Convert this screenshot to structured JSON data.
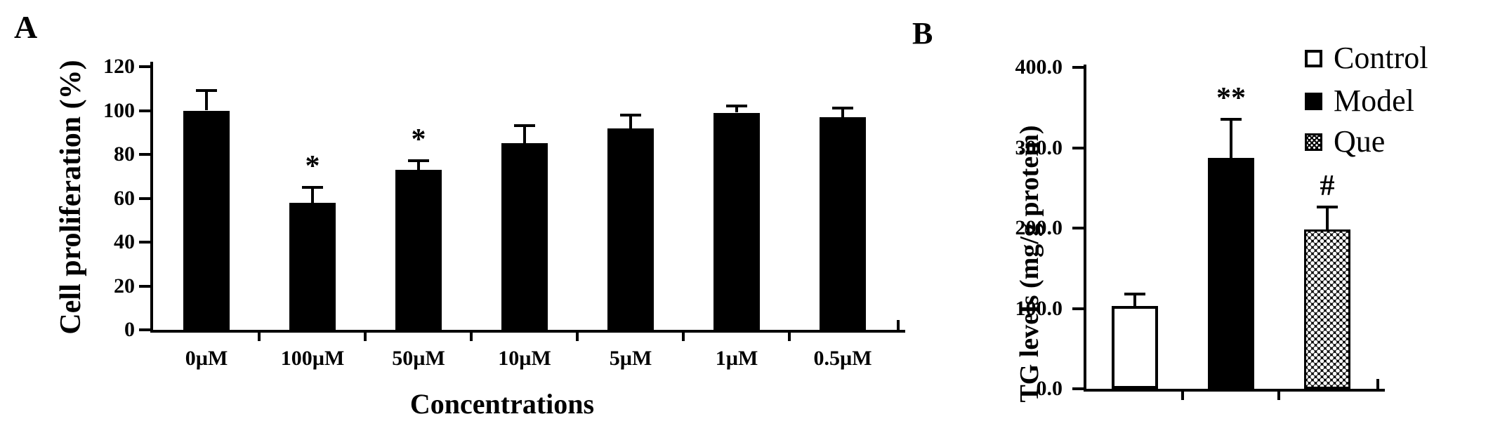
{
  "figure": {
    "background": "#ffffff",
    "ink_color": "#000000"
  },
  "chart_data": [
    {
      "id": "panel-a",
      "panel_label": "A",
      "type": "bar",
      "title": "",
      "ylabel": "Cell proliferation (%)",
      "xlabel": "Concentrations",
      "categories": [
        "0µM",
        "100µM",
        "50µM",
        "10µM",
        "5µM",
        "1µM",
        "0.5µM"
      ],
      "values": [
        100,
        58,
        73,
        85,
        92,
        99,
        97
      ],
      "errors": [
        9,
        7,
        4,
        8,
        6,
        3,
        4
      ],
      "annotations": [
        "",
        "*",
        "*",
        "",
        "",
        "",
        ""
      ],
      "ylim": [
        0,
        120
      ],
      "yticks": [
        0,
        20,
        40,
        60,
        80,
        100,
        120
      ],
      "ytick_labels": [
        "0",
        "20",
        "40",
        "60",
        "80",
        "100",
        "120"
      ],
      "bar_fill": "#000000",
      "grid": "off",
      "legend_position": "none"
    },
    {
      "id": "panel-b",
      "panel_label": "B",
      "type": "bar",
      "title": "",
      "ylabel": "TG levels (mg/g protein)",
      "xlabel": "",
      "categories": [
        "Control",
        "Model",
        "Que"
      ],
      "values": [
        103,
        287,
        198
      ],
      "errors": [
        15,
        48,
        28
      ],
      "annotations": [
        "",
        "**",
        "#"
      ],
      "ylim": [
        0,
        400
      ],
      "yticks": [
        0,
        100,
        200,
        300,
        400
      ],
      "ytick_labels": [
        "0.0",
        "100.0",
        "200.0",
        "300.0",
        "400.0"
      ],
      "series_styles": [
        "open",
        "solid",
        "dotted"
      ],
      "bar_fill": "#000000",
      "grid": "off",
      "legend_position": "top-right",
      "legend": [
        {
          "label": "Control",
          "style": "open"
        },
        {
          "label": "Model",
          "style": "solid"
        },
        {
          "label": "Que",
          "style": "dotted"
        }
      ]
    }
  ]
}
